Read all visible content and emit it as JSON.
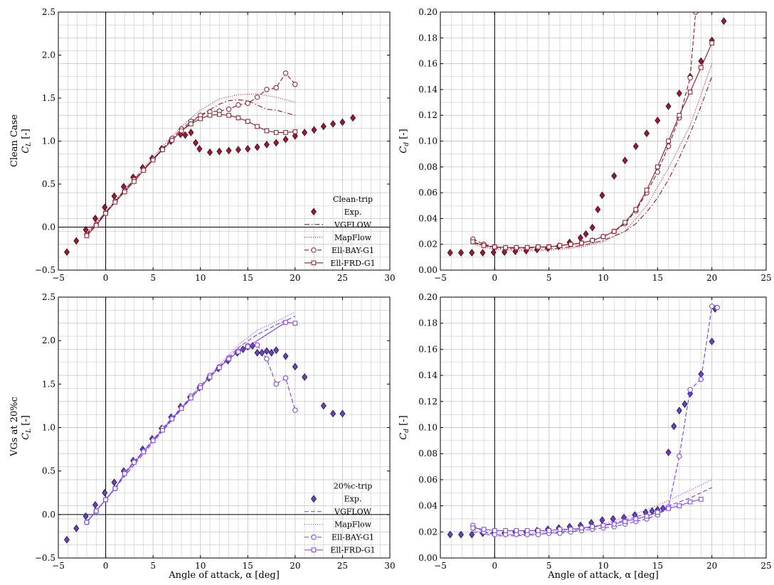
{
  "colors": {
    "clean": "#8b1a2b",
    "clean_fill": "#b01030",
    "vg": "#7a3de8",
    "vg_fill": "#6d3ddc",
    "grid": "#c8c8c8"
  },
  "figure": {
    "xlabel": "Angle of attack, α [deg]"
  },
  "chart_data": [
    {
      "type": "line",
      "panel": "top-left",
      "row_title": "Clean Case",
      "ylabel": "C_L [-]",
      "xlim": [
        -5,
        30
      ],
      "ylim": [
        -0.5,
        2.5
      ],
      "xticks": [
        "−5",
        "0",
        "5",
        "10",
        "15",
        "20",
        "25",
        "30"
      ],
      "yticks": [
        "−0.5",
        "0.0",
        "0.5",
        "1.0",
        "1.5",
        "2.0",
        "2.5"
      ],
      "legend": {
        "title": "Clean-trip",
        "position": "lower-right"
      },
      "series": [
        {
          "name": "Exp.",
          "style": "diamond-markers",
          "x": [
            -4.1,
            -3.1,
            -2.1,
            -1.1,
            -0.1,
            0.9,
            1.9,
            2.9,
            3.9,
            4.9,
            5.9,
            6.9,
            7.9,
            8.4,
            9.0,
            9.5,
            9.9,
            11.0,
            12.0,
            13.0,
            14.0,
            15.0,
            16.0,
            17.0,
            18.0,
            19.0,
            20.0,
            21.0,
            22.0,
            23.0,
            24.0,
            25.0,
            26.1
          ],
          "y": [
            -0.29,
            -0.16,
            -0.03,
            0.1,
            0.23,
            0.36,
            0.47,
            0.58,
            0.69,
            0.8,
            0.91,
            1.0,
            1.08,
            1.07,
            1.1,
            0.98,
            0.91,
            0.87,
            0.88,
            0.89,
            0.9,
            0.91,
            0.93,
            0.96,
            0.98,
            1.02,
            1.06,
            1.1,
            1.13,
            1.17,
            1.2,
            1.22,
            1.27
          ]
        },
        {
          "name": "VGFLOW",
          "style": "dash-dot",
          "x": [
            -2,
            0,
            2,
            4,
            6,
            8,
            10,
            12,
            13,
            14,
            15,
            16,
            17,
            18,
            19,
            20
          ],
          "y": [
            -0.08,
            0.17,
            0.43,
            0.67,
            0.91,
            1.12,
            1.3,
            1.43,
            1.47,
            1.48,
            1.47,
            1.42,
            1.37,
            1.36,
            1.33,
            1.3
          ]
        },
        {
          "name": "MapFlow",
          "style": "dotted",
          "x": [
            -2,
            0,
            2,
            4,
            6,
            8,
            10,
            12,
            14,
            16,
            18,
            20
          ],
          "y": [
            -0.07,
            0.18,
            0.44,
            0.69,
            0.94,
            1.17,
            1.36,
            1.49,
            1.54,
            1.55,
            1.51,
            1.45
          ]
        },
        {
          "name": "Ell-BAY-G1",
          "style": "dashed-circles",
          "x": [
            -2,
            -1,
            0,
            1,
            2,
            3,
            4,
            5,
            6,
            7,
            8,
            9,
            10,
            11,
            12,
            13,
            14,
            15,
            16,
            17,
            18,
            19,
            20
          ],
          "y": [
            -0.09,
            0.03,
            0.17,
            0.3,
            0.42,
            0.55,
            0.67,
            0.79,
            0.91,
            1.03,
            1.14,
            1.23,
            1.3,
            1.34,
            1.35,
            1.37,
            1.42,
            1.44,
            1.51,
            1.6,
            1.62,
            1.79,
            1.66
          ]
        },
        {
          "name": "Ell-FRD-G1",
          "style": "solid-squares",
          "x": [
            -2,
            -1,
            0,
            1,
            2,
            3,
            4,
            5,
            6,
            7,
            8,
            9,
            10,
            11,
            12,
            13,
            14,
            15,
            16,
            17,
            18,
            19,
            20
          ],
          "y": [
            -0.1,
            0.02,
            0.16,
            0.29,
            0.41,
            0.53,
            0.66,
            0.78,
            0.9,
            1.01,
            1.12,
            1.2,
            1.26,
            1.3,
            1.31,
            1.3,
            1.27,
            1.23,
            1.17,
            1.12,
            1.1,
            1.1,
            1.11
          ]
        }
      ]
    },
    {
      "type": "line",
      "panel": "top-right",
      "ylabel": "C_d [-]",
      "xlim": [
        -5,
        25
      ],
      "ylim": [
        0,
        0.2
      ],
      "xticks": [
        "−5",
        "0",
        "5",
        "10",
        "15",
        "20",
        "25"
      ],
      "yticks": [
        "0.00",
        "0.02",
        "0.04",
        "0.06",
        "0.08",
        "0.10",
        "0.12",
        "0.14",
        "0.16",
        "0.18",
        "0.20"
      ],
      "series": [
        {
          "name": "Exp.",
          "style": "diamond-markers",
          "x": [
            -4.1,
            -3.1,
            -2.1,
            -1.1,
            -0.1,
            0.9,
            1.9,
            2.9,
            3.9,
            4.9,
            5.9,
            6.9,
            7.9,
            8.4,
            9.0,
            9.5,
            9.9,
            11.0,
            12.0,
            13.0,
            14.0,
            15.0,
            16.0,
            17.0,
            18.0,
            19.0,
            20.0,
            21.1
          ],
          "y": [
            0.0135,
            0.0135,
            0.0135,
            0.0135,
            0.0138,
            0.014,
            0.0145,
            0.015,
            0.016,
            0.017,
            0.0185,
            0.0215,
            0.025,
            0.028,
            0.033,
            0.047,
            0.058,
            0.073,
            0.085,
            0.096,
            0.106,
            0.116,
            0.127,
            0.137,
            0.15,
            0.162,
            0.178,
            0.193
          ]
        },
        {
          "name": "VGFLOW",
          "style": "dash-dot",
          "x": [
            -2,
            0,
            2,
            4,
            6,
            8,
            10,
            12,
            13,
            14,
            15,
            16,
            17,
            18,
            19,
            20
          ],
          "y": [
            0.021,
            0.017,
            0.016,
            0.016,
            0.017,
            0.019,
            0.023,
            0.03,
            0.036,
            0.045,
            0.056,
            0.07,
            0.087,
            0.106,
            0.127,
            0.15
          ]
        },
        {
          "name": "MapFlow",
          "style": "dotted",
          "x": [
            -2,
            0,
            2,
            4,
            6,
            8,
            10,
            12,
            14,
            16,
            18,
            20
          ],
          "y": [
            0.02,
            0.016,
            0.015,
            0.015,
            0.016,
            0.018,
            0.022,
            0.03,
            0.05,
            0.079,
            0.112,
            0.16
          ]
        },
        {
          "name": "Ell-BAY-G1",
          "style": "dashed-circles",
          "x": [
            -2,
            -1,
            0,
            1,
            2,
            3,
            4,
            5,
            6,
            7,
            8,
            9,
            10,
            11,
            12,
            13,
            14,
            15,
            16,
            17,
            18,
            18.5
          ],
          "y": [
            0.024,
            0.02,
            0.018,
            0.017,
            0.017,
            0.017,
            0.0175,
            0.018,
            0.019,
            0.02,
            0.021,
            0.023,
            0.026,
            0.03,
            0.036,
            0.046,
            0.06,
            0.076,
            0.096,
            0.118,
            0.149,
            0.2
          ]
        },
        {
          "name": "Ell-FRD-G1",
          "style": "solid-squares",
          "x": [
            -2,
            -1,
            0,
            1,
            2,
            3,
            4,
            5,
            6,
            7,
            8,
            9,
            10,
            11,
            12,
            13,
            14,
            15,
            16,
            17,
            18,
            19,
            20
          ],
          "y": [
            0.022,
            0.019,
            0.018,
            0.0175,
            0.0175,
            0.0175,
            0.018,
            0.018,
            0.019,
            0.02,
            0.021,
            0.023,
            0.026,
            0.03,
            0.037,
            0.047,
            0.062,
            0.08,
            0.1,
            0.12,
            0.138,
            0.157,
            0.176
          ]
        }
      ]
    },
    {
      "type": "line",
      "panel": "bottom-left",
      "row_title": "VGs at 20%c",
      "ylabel": "C_L [-]",
      "xlim": [
        -5,
        30
      ],
      "ylim": [
        -0.5,
        2.5
      ],
      "xticks": [
        "−5",
        "0",
        "5",
        "10",
        "15",
        "20",
        "25",
        "30"
      ],
      "yticks": [
        "−0.5",
        "0.0",
        "0.5",
        "1.0",
        "1.5",
        "2.0",
        "2.5"
      ],
      "legend": {
        "title": "20%c-trip",
        "position": "lower-right"
      },
      "series": [
        {
          "name": "Exp.",
          "style": "diamond-markers",
          "x": [
            -4.1,
            -3.1,
            -2.1,
            -1.1,
            -0.1,
            0.9,
            1.9,
            2.9,
            3.9,
            4.9,
            5.9,
            6.9,
            7.9,
            8.9,
            9.9,
            10.9,
            11.9,
            12.9,
            13.9,
            14.5,
            15.0,
            15.5,
            16.0,
            16.5,
            17.0,
            17.5,
            18.0,
            19.0,
            20.0,
            21.0,
            23.0,
            24.0,
            25.0
          ],
          "y": [
            -0.29,
            -0.16,
            -0.02,
            0.11,
            0.25,
            0.37,
            0.5,
            0.62,
            0.75,
            0.87,
            0.99,
            1.12,
            1.24,
            1.35,
            1.46,
            1.57,
            1.68,
            1.77,
            1.86,
            1.9,
            1.93,
            1.94,
            1.86,
            1.86,
            1.88,
            1.86,
            1.89,
            1.82,
            1.7,
            1.58,
            1.25,
            1.16,
            1.16
          ]
        },
        {
          "name": "VGFLOW",
          "style": "dashed",
          "x": [
            -2,
            0,
            2,
            4,
            6,
            8,
            10,
            12,
            14,
            16,
            18,
            20
          ],
          "y": [
            -0.09,
            0.17,
            0.44,
            0.7,
            0.96,
            1.21,
            1.46,
            1.7,
            1.92,
            2.07,
            2.18,
            2.28
          ]
        },
        {
          "name": "MapFlow",
          "style": "dotted",
          "x": [
            -2,
            0,
            2,
            4,
            6,
            8,
            10,
            12,
            14,
            16,
            18,
            20
          ],
          "y": [
            -0.08,
            0.18,
            0.45,
            0.72,
            0.98,
            1.23,
            1.48,
            1.72,
            1.95,
            2.12,
            2.22,
            2.33
          ]
        },
        {
          "name": "Ell-BAY-G1",
          "style": "dashed-circles",
          "x": [
            -2,
            -1,
            0,
            1,
            2,
            3,
            4,
            5,
            6,
            7,
            8,
            9,
            10,
            11,
            12,
            13,
            14,
            15,
            16,
            17,
            18,
            19,
            20
          ],
          "y": [
            -0.09,
            0.04,
            0.17,
            0.3,
            0.48,
            0.61,
            0.73,
            0.86,
            0.99,
            1.11,
            1.23,
            1.36,
            1.48,
            1.6,
            1.7,
            1.8,
            1.88,
            1.94,
            1.95,
            1.79,
            1.5,
            1.57,
            1.2
          ]
        },
        {
          "name": "Ell-FRD-G1",
          "style": "solid-squares",
          "x": [
            -2,
            -1,
            0,
            1,
            2,
            3,
            4,
            5,
            6,
            7,
            8,
            9,
            10,
            11,
            12,
            13,
            14,
            15,
            19,
            20
          ],
          "y": [
            -0.09,
            0.04,
            0.17,
            0.3,
            0.47,
            0.6,
            0.72,
            0.85,
            0.97,
            1.1,
            1.22,
            1.34,
            1.46,
            1.58,
            1.69,
            1.79,
            1.87,
            1.93,
            2.21,
            2.2
          ]
        }
      ]
    },
    {
      "type": "line",
      "panel": "bottom-right",
      "ylabel": "C_d [-]",
      "xlim": [
        -5,
        25
      ],
      "ylim": [
        0,
        0.2
      ],
      "xticks": [
        "−5",
        "0",
        "5",
        "10",
        "15",
        "20",
        "25"
      ],
      "yticks": [
        "0.00",
        "0.02",
        "0.04",
        "0.06",
        "0.08",
        "0.10",
        "0.12",
        "0.14",
        "0.16",
        "0.18",
        "0.20"
      ],
      "series": [
        {
          "name": "Exp.",
          "style": "diamond-markers",
          "x": [
            -4.1,
            -3.1,
            -2.1,
            -1.1,
            -0.1,
            0.9,
            1.9,
            2.9,
            3.9,
            4.9,
            5.9,
            6.9,
            7.9,
            8.9,
            9.9,
            10.9,
            11.9,
            12.9,
            13.9,
            14.5,
            15.0,
            15.5,
            16.0,
            16.5,
            17.0,
            17.5,
            18.0,
            19.0,
            20.0,
            20.3
          ],
          "y": [
            0.018,
            0.018,
            0.018,
            0.019,
            0.019,
            0.019,
            0.02,
            0.02,
            0.021,
            0.022,
            0.023,
            0.024,
            0.025,
            0.027,
            0.029,
            0.03,
            0.031,
            0.033,
            0.035,
            0.036,
            0.037,
            0.038,
            0.081,
            0.101,
            0.113,
            0.118,
            0.126,
            0.141,
            0.166,
            0.191
          ]
        },
        {
          "name": "VGFLOW",
          "style": "dashed",
          "x": [
            -2,
            0,
            2,
            4,
            6,
            8,
            10,
            12,
            14,
            16,
            18,
            20
          ],
          "y": [
            0.02,
            0.017,
            0.017,
            0.018,
            0.02,
            0.022,
            0.025,
            0.029,
            0.034,
            0.04,
            0.046,
            0.054
          ]
        },
        {
          "name": "MapFlow",
          "style": "dotted",
          "x": [
            -2,
            0,
            2,
            4,
            6,
            8,
            10,
            12,
            14,
            16,
            18,
            20
          ],
          "y": [
            0.021,
            0.018,
            0.018,
            0.019,
            0.021,
            0.023,
            0.026,
            0.031,
            0.037,
            0.044,
            0.052,
            0.06
          ]
        },
        {
          "name": "Ell-BAY-G1",
          "style": "dashed-circles",
          "x": [
            -2,
            -1,
            0,
            1,
            2,
            3,
            4,
            5,
            6,
            7,
            8,
            9,
            10,
            11,
            12,
            13,
            14,
            15,
            16,
            17,
            18,
            19,
            20,
            20.5
          ],
          "y": [
            0.025,
            0.02,
            0.018,
            0.018,
            0.018,
            0.018,
            0.018,
            0.019,
            0.019,
            0.02,
            0.021,
            0.022,
            0.023,
            0.024,
            0.026,
            0.028,
            0.03,
            0.033,
            0.039,
            0.078,
            0.129,
            0.137,
            0.193,
            0.192
          ]
        },
        {
          "name": "Ell-FRD-G1",
          "style": "solid-squares",
          "x": [
            -2,
            -1,
            0,
            1,
            2,
            3,
            4,
            5,
            6,
            7,
            8,
            9,
            10,
            11,
            12,
            13,
            14,
            15,
            16,
            17,
            18,
            19
          ],
          "y": [
            0.023,
            0.022,
            0.021,
            0.021,
            0.021,
            0.021,
            0.021,
            0.021,
            0.022,
            0.022,
            0.023,
            0.024,
            0.025,
            0.026,
            0.028,
            0.03,
            0.032,
            0.035,
            0.038,
            0.04,
            0.043,
            0.045
          ]
        }
      ]
    }
  ]
}
